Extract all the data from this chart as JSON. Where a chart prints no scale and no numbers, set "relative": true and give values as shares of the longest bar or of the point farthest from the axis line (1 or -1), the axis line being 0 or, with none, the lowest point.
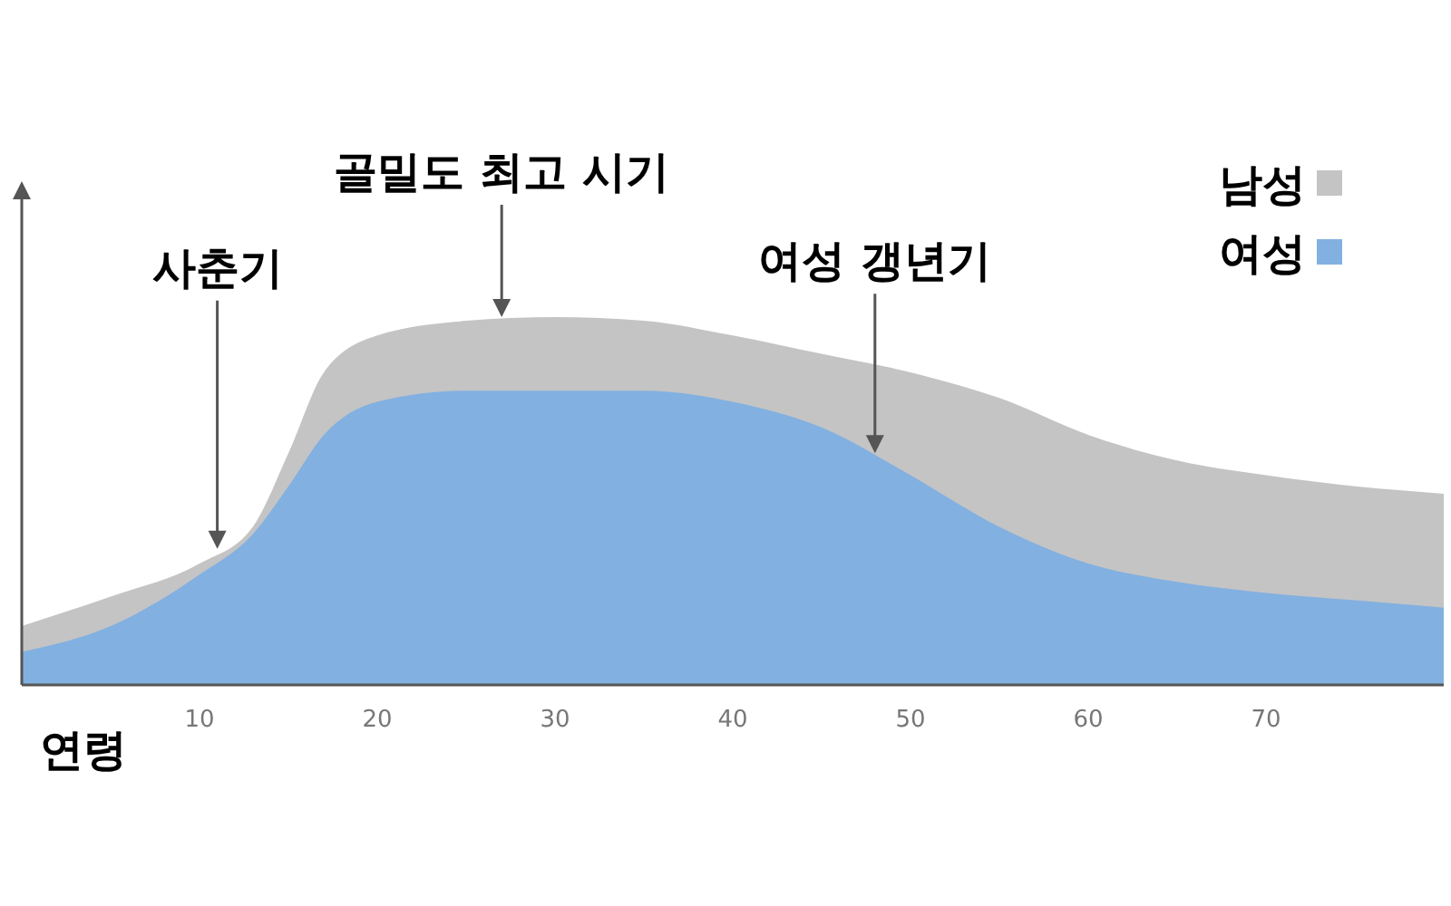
{
  "chart_data": {
    "type": "area",
    "relative": true,
    "xlabel": "연령",
    "x": [
      0,
      5,
      10,
      13,
      15,
      17,
      20,
      25,
      30,
      35,
      40,
      45,
      50,
      55,
      60,
      65,
      70,
      75,
      80
    ],
    "xlim": [
      0,
      80
    ],
    "xticks": [
      10,
      20,
      30,
      40,
      50,
      60,
      70
    ],
    "series": [
      {
        "name": "남성",
        "color": "#c4c4c4",
        "values": [
          0.16,
          0.24,
          0.33,
          0.43,
          0.63,
          0.85,
          0.95,
          0.99,
          1,
          0.99,
          0.95,
          0.9,
          0.85,
          0.78,
          0.68,
          0.61,
          0.57,
          0.54,
          0.52
        ]
      },
      {
        "name": "여성",
        "color": "#82b0e0",
        "values": [
          0.09,
          0.16,
          0.3,
          0.41,
          0.54,
          0.68,
          0.77,
          0.8,
          0.8,
          0.8,
          0.77,
          0.7,
          0.57,
          0.43,
          0.33,
          0.28,
          0.25,
          0.23,
          0.21
        ]
      }
    ],
    "annotations": [
      {
        "text": "사춘기",
        "x": 11,
        "y": 0.37
      },
      {
        "text": "골밀도 최고 시기",
        "x": 27,
        "y": 1
      },
      {
        "text": "여성 갱년기",
        "x": 48,
        "y": 0.63
      }
    ],
    "legend": "top right",
    "grid": false
  }
}
